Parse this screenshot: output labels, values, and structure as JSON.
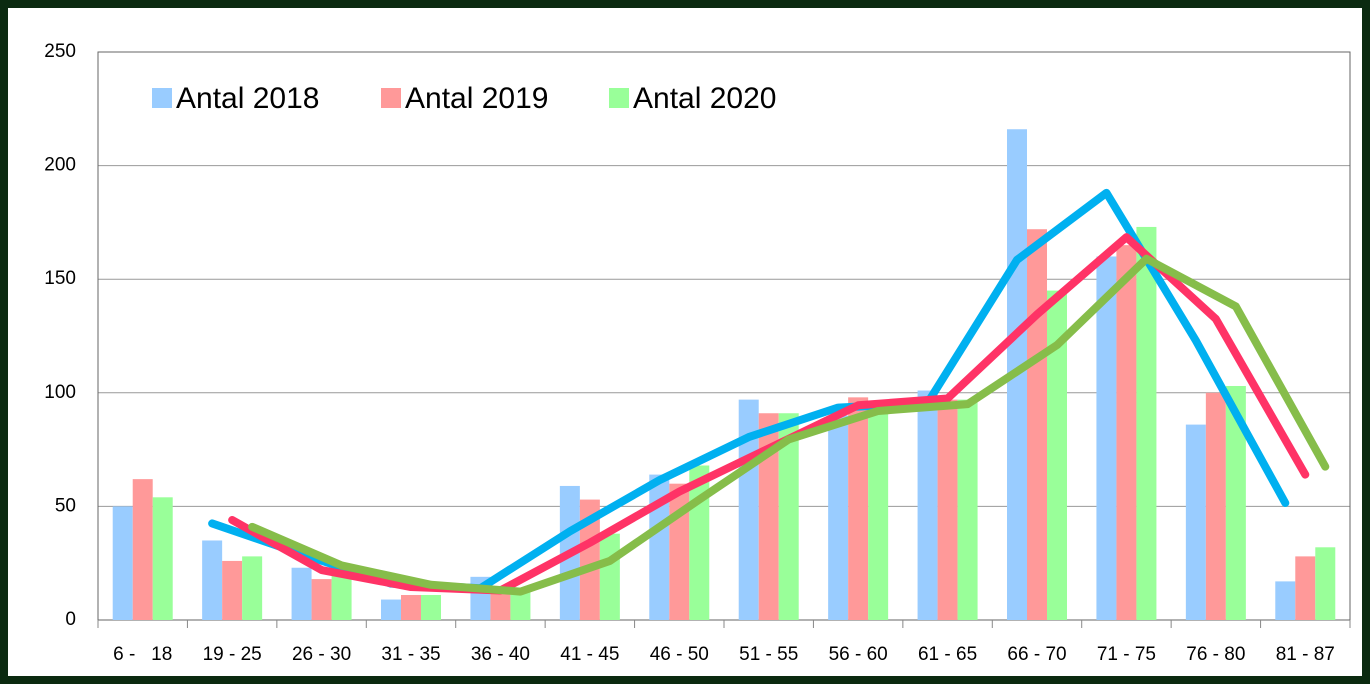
{
  "chart_data": {
    "type": "bar",
    "categories": [
      "6 -   18",
      "19 - 25",
      "26 - 30",
      "31 - 35",
      "36 - 40",
      "41 - 45",
      "46 - 50",
      "51 - 55",
      "56 - 60",
      "61 - 65",
      "66 - 70",
      "71 - 75",
      "76 - 80",
      "81 - 87"
    ],
    "series": [
      {
        "name": "Antal 2018",
        "color": "#99ccff",
        "values": [
          50,
          35,
          23,
          9,
          19,
          59,
          64,
          97,
          90,
          101,
          216,
          160,
          86,
          17
        ]
      },
      {
        "name": "Antal 2019",
        "color": "#ff9999",
        "values": [
          62,
          26,
          18,
          11,
          15,
          53,
          60,
          91,
          98,
          97,
          172,
          165,
          100,
          28
        ]
      },
      {
        "name": "Antal 2020",
        "color": "#99ff99",
        "values": [
          54,
          28,
          20,
          11,
          14,
          38,
          68,
          91,
          93,
          97,
          145,
          173,
          103,
          32
        ]
      }
    ],
    "trendlines": [
      {
        "color": "#00b0f0",
        "values": [
          null,
          42.5,
          29,
          16,
          14,
          39,
          61.5,
          80.5,
          93.5,
          95.5,
          158.5,
          188,
          123,
          51.5
        ]
      },
      {
        "color": "#ff3366",
        "values": [
          null,
          44,
          22,
          14.5,
          13,
          34,
          56.5,
          75.5,
          94.5,
          97.5,
          134.5,
          168.5,
          132.5,
          64
        ]
      },
      {
        "color": "#86bd4a",
        "values": [
          null,
          41,
          24,
          15.5,
          12.5,
          26,
          53,
          79.5,
          92,
          95,
          121,
          159,
          138,
          67.5
        ]
      }
    ],
    "ylim": [
      0,
      250
    ],
    "yticks": [
      0,
      50,
      100,
      150,
      200,
      250
    ],
    "grid": true
  }
}
